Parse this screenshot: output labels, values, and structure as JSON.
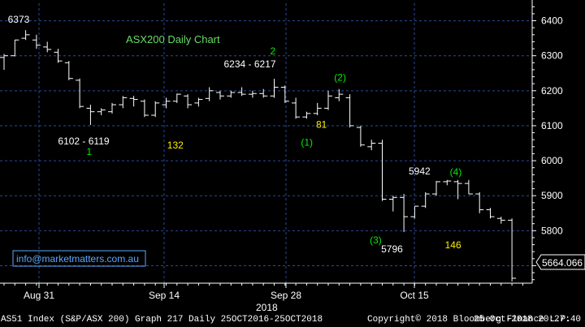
{
  "chart_data": {
    "type": "line",
    "style": "ohlc-bars",
    "title": "ASX200 Daily Chart",
    "ylim": [
      5650,
      6450
    ],
    "y_ticks": [
      5700,
      5800,
      5900,
      6000,
      6100,
      6200,
      6300,
      6400
    ],
    "y_tick_labels": [
      "5700",
      "5800",
      "5900",
      "6000",
      "6100",
      "6200",
      "6300",
      "6400"
    ],
    "last_value_label": "5664.066",
    "last_value": 5664.066,
    "x_ticks": [
      "Aug 31",
      "Sep 14",
      "Sep 28",
      "Oct 15"
    ],
    "x_year_label": "2018",
    "grid": true,
    "series": [
      {
        "values": [
          {
            "o": 6295,
            "h": 6305,
            "l": 6260,
            "c": 6300
          },
          {
            "o": 6300,
            "h": 6345,
            "l": 6298,
            "c": 6345
          },
          {
            "o": 6350,
            "h": 6373,
            "l": 6345,
            "c": 6360
          },
          {
            "o": 6345,
            "h": 6360,
            "l": 6320,
            "c": 6330
          },
          {
            "o": 6325,
            "h": 6340,
            "l": 6310,
            "c": 6318
          },
          {
            "o": 6310,
            "h": 6320,
            "l": 6280,
            "c": 6285
          },
          {
            "o": 6280,
            "h": 6285,
            "l": 6230,
            "c": 6235
          },
          {
            "o": 6230,
            "h": 6235,
            "l": 6150,
            "c": 6155
          },
          {
            "o": 6150,
            "h": 6160,
            "l": 6102,
            "c": 6140
          },
          {
            "o": 6140,
            "h": 6150,
            "l": 6130,
            "c": 6145
          },
          {
            "o": 6140,
            "h": 6165,
            "l": 6135,
            "c": 6160
          },
          {
            "o": 6160,
            "h": 6185,
            "l": 6150,
            "c": 6180
          },
          {
            "o": 6178,
            "h": 6185,
            "l": 6155,
            "c": 6175
          },
          {
            "o": 6170,
            "h": 6175,
            "l": 6125,
            "c": 6130
          },
          {
            "o": 6130,
            "h": 6170,
            "l": 6125,
            "c": 6165
          },
          {
            "o": 6160,
            "h": 6180,
            "l": 6150,
            "c": 6170
          },
          {
            "o": 6170,
            "h": 6192,
            "l": 6165,
            "c": 6190
          },
          {
            "o": 6185,
            "h": 6190,
            "l": 6150,
            "c": 6160
          },
          {
            "o": 6165,
            "h": 6180,
            "l": 6155,
            "c": 6175
          },
          {
            "o": 6178,
            "h": 6210,
            "l": 6170,
            "c": 6200
          },
          {
            "o": 6195,
            "h": 6200,
            "l": 6175,
            "c": 6185
          },
          {
            "o": 6185,
            "h": 6200,
            "l": 6180,
            "c": 6195
          },
          {
            "o": 6195,
            "h": 6210,
            "l": 6185,
            "c": 6190
          },
          {
            "o": 6190,
            "h": 6200,
            "l": 6180,
            "c": 6192
          },
          {
            "o": 6192,
            "h": 6205,
            "l": 6180,
            "c": 6185
          },
          {
            "o": 6185,
            "h": 6234,
            "l": 6180,
            "c": 6210
          },
          {
            "o": 6210,
            "h": 6215,
            "l": 6165,
            "c": 6170
          },
          {
            "o": 6165,
            "h": 6180,
            "l": 6120,
            "c": 6125
          },
          {
            "o": 6125,
            "h": 6140,
            "l": 6120,
            "c": 6135
          },
          {
            "o": 6135,
            "h": 6165,
            "l": 6130,
            "c": 6150
          },
          {
            "o": 6150,
            "h": 6200,
            "l": 6145,
            "c": 6185
          },
          {
            "o": 6180,
            "h": 6205,
            "l": 6170,
            "c": 6190
          },
          {
            "o": 6180,
            "h": 6190,
            "l": 6095,
            "c": 6100
          },
          {
            "o": 6095,
            "h": 6100,
            "l": 6040,
            "c": 6045
          },
          {
            "o": 6040,
            "h": 6060,
            "l": 6030,
            "c": 6050
          },
          {
            "o": 6050,
            "h": 6060,
            "l": 5885,
            "c": 5890
          },
          {
            "o": 5890,
            "h": 5900,
            "l": 5855,
            "c": 5895
          },
          {
            "o": 5895,
            "h": 5905,
            "l": 5796,
            "c": 5840
          },
          {
            "o": 5840,
            "h": 5870,
            "l": 5835,
            "c": 5870
          },
          {
            "o": 5870,
            "h": 5910,
            "l": 5865,
            "c": 5905
          },
          {
            "o": 5905,
            "h": 5942,
            "l": 5900,
            "c": 5940
          },
          {
            "o": 5940,
            "h": 5945,
            "l": 5930,
            "c": 5942
          },
          {
            "o": 5940,
            "h": 5945,
            "l": 5890,
            "c": 5935
          },
          {
            "o": 5935,
            "h": 5945,
            "l": 5905,
            "c": 5905
          },
          {
            "o": 5905,
            "h": 5910,
            "l": 5850,
            "c": 5860
          },
          {
            "o": 5860,
            "h": 5865,
            "l": 5835,
            "c": 5840
          },
          {
            "o": 5835,
            "h": 5840,
            "l": 5820,
            "c": 5830
          },
          {
            "o": 5830,
            "h": 5835,
            "l": 5655,
            "c": 5664.066
          }
        ]
      }
    ],
    "annotations": [
      {
        "text": "6373",
        "x": 2,
        "y": 6373,
        "color": "#ffffff"
      },
      {
        "text": "6102 - 6119",
        "x": 8,
        "y": 6102,
        "color": "#ffffff"
      },
      {
        "text": "1",
        "x": 8,
        "y": 6102,
        "color": "#00ee00"
      },
      {
        "text": "132",
        "x": 16,
        "y": 6130,
        "color": "#ffee00"
      },
      {
        "text": "6234 - 6217",
        "x": 25,
        "y": 6234,
        "color": "#ffffff"
      },
      {
        "text": "2",
        "x": 25,
        "y": 6234,
        "color": "#00ee00"
      },
      {
        "text": "(1)",
        "x": 28,
        "y": 6120,
        "color": "#00ee00"
      },
      {
        "text": "81",
        "x": 30,
        "y": 6145,
        "color": "#ffee00"
      },
      {
        "text": "(2)",
        "x": 31,
        "y": 6205,
        "color": "#00ee00"
      },
      {
        "text": "(3)",
        "x": 37,
        "y": 5796,
        "color": "#00ee00"
      },
      {
        "text": "5796",
        "x": 37,
        "y": 5796,
        "color": "#ffffff"
      },
      {
        "text": "5942",
        "x": 40,
        "y": 5942,
        "color": "#ffffff"
      },
      {
        "text": "(4)",
        "x": 42,
        "y": 5942,
        "color": "#00ee00"
      },
      {
        "text": "146",
        "x": 42,
        "y": 5840,
        "color": "#ffee00"
      }
    ]
  },
  "watermark": "info@marketmatters.com.au",
  "footer": {
    "left": "AS51 Index (S&P/ASX 200) Graph 217  Daily 25OCT2016-25OCT2018",
    "center": "Copyright© 2018 Bloomberg Finance L.P.",
    "right": "25-Oct-2018 20:27:40"
  },
  "colors": {
    "background": "#000000",
    "bars": "#ffffff",
    "grid": "#2a4a9a",
    "wave_labels": "#00ee00",
    "counts": "#ffee00",
    "watermark": "#5aa8ff",
    "title": "#66dd66"
  }
}
